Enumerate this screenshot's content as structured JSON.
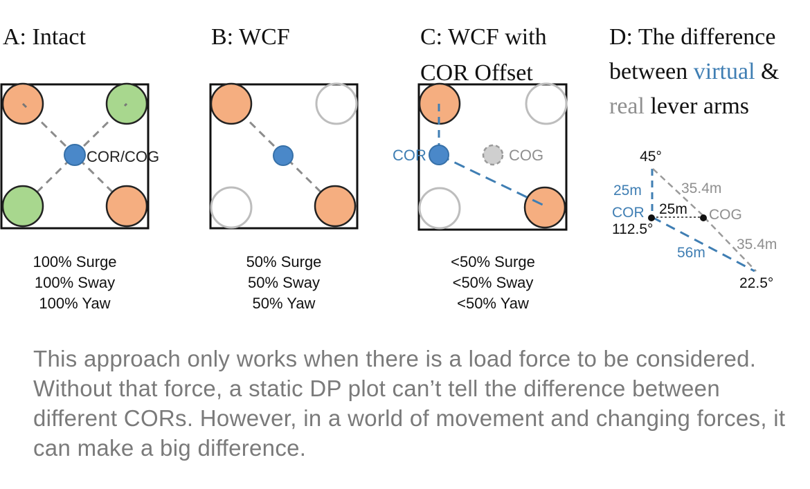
{
  "colors": {
    "orange": "#f5ae80",
    "green": "#a8d78e",
    "blue": "#4a88c9",
    "blue_text": "#3f7eb3",
    "gray": "#bdbdbd",
    "gray_text": "#8f8f8f",
    "caption": "#7a7a7a"
  },
  "panels": {
    "a": {
      "title": "A: Intact",
      "center_label": "COR/COG",
      "stats": [
        "100% Surge",
        "100% Sway",
        "100% Yaw"
      ]
    },
    "b": {
      "title": "B: WCF",
      "stats": [
        "50% Surge",
        "50% Sway",
        "50% Yaw"
      ]
    },
    "c": {
      "title_line1": "C: WCF with",
      "title_line2": "COR Offset",
      "cor_label": "COR",
      "cog_label": "COG",
      "stats": [
        "<50% Surge",
        "<50% Sway",
        "<50% Yaw"
      ]
    },
    "d": {
      "title_line1": "D: The difference",
      "title_line2_prefix": "between ",
      "title_line2_virtual": "virtual",
      "title_line2_suffix": " &",
      "title_line3_real": "real",
      "title_line3_suffix": " lever arms",
      "angle_top": "45°",
      "angle_cor": "112.5°",
      "angle_bottom": "22.5°",
      "len_vertical": "25m",
      "len_horizontal": "25m",
      "len_diag_top": "35.4m",
      "len_diag_bottom": "35.4m",
      "len_blue": "56m",
      "cor_label": "COR",
      "cog_label": "COG"
    }
  },
  "caption": "This approach only works when there is a load force to be considered.  Without that force, a static DP plot can’t tell the difference between different CORs.  However, in a world of movement and changing forces, it can make a big difference."
}
